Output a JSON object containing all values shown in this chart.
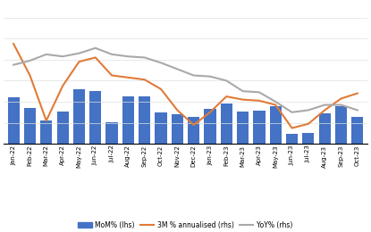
{
  "months": [
    "Jan-22",
    "Feb-22",
    "Mar-22",
    "Apr-22",
    "May-22",
    "Jun-22",
    "Jul-22",
    "Aug-22",
    "Sep-22",
    "Oct-22",
    "Nov-22",
    "Dec-22",
    "Jan-23",
    "Feb-23",
    "Mar-23",
    "Apr-23",
    "May-23",
    "Jun-23",
    "Jul-23",
    "Aug-23",
    "Sep-23",
    "Oct-23"
  ],
  "mom": [
    0.54,
    0.42,
    0.27,
    0.38,
    0.64,
    0.62,
    0.25,
    0.55,
    0.55,
    0.37,
    0.35,
    0.31,
    0.41,
    0.47,
    0.38,
    0.39,
    0.44,
    0.12,
    0.13,
    0.36,
    0.44,
    0.31
  ],
  "annualised_3m": [
    9.5,
    6.5,
    2.2,
    5.5,
    7.8,
    8.2,
    6.5,
    6.3,
    6.1,
    5.2,
    3.2,
    1.8,
    3.0,
    4.5,
    4.2,
    4.1,
    3.7,
    1.5,
    1.9,
    3.2,
    4.3,
    4.8
  ],
  "yoy": [
    7.5,
    7.9,
    8.5,
    8.3,
    8.6,
    9.1,
    8.5,
    8.3,
    8.2,
    7.7,
    7.1,
    6.5,
    6.4,
    6.0,
    5.0,
    4.9,
    4.0,
    3.0,
    3.2,
    3.7,
    3.7,
    3.2
  ],
  "bar_color": "#4472C4",
  "line_3m_color": "#E07B39",
  "line_yoy_color": "#A9A9A9",
  "background_color": "#FFFFFF",
  "grid_color": "#E0E0E0",
  "legend_labels": [
    "MoM% (lhs)",
    "3M % annualised (rhs)",
    "YoY% (rhs)"
  ],
  "ylim_left": [
    0,
    1.6
  ],
  "ylim_right": [
    0,
    13
  ],
  "figsize": [
    4.15,
    2.6
  ],
  "dpi": 100
}
